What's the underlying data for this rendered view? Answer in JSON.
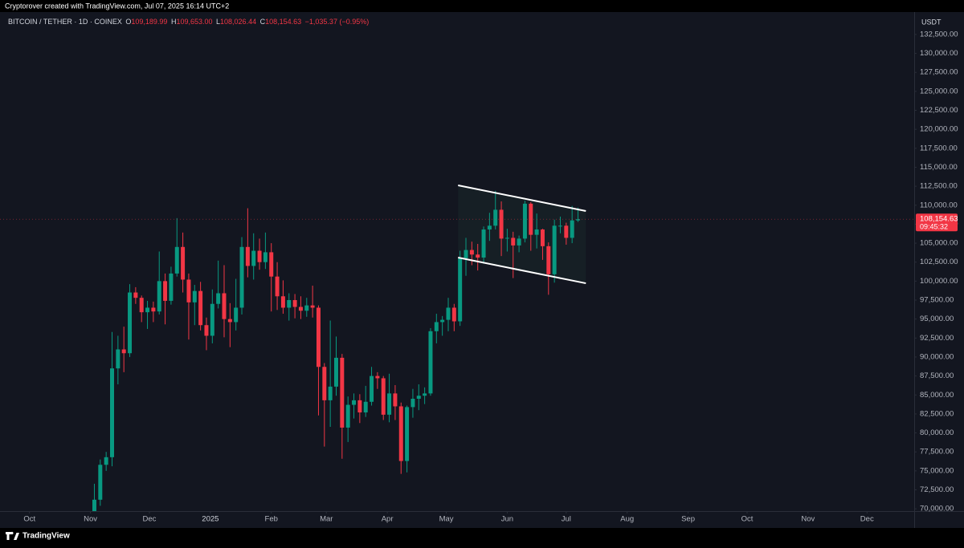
{
  "top_bar": {
    "text": "Cryptorover created with TradingView.com, Jul 07, 2025 16:14 UTC+2"
  },
  "footer": {
    "brand": "TradingView"
  },
  "chart_data": {
    "type": "candlestick",
    "header": {
      "symbol": "BITCOIN / TETHER · 1D · COINEX",
      "open_label": "O",
      "open": "109,189.99",
      "high_label": "H",
      "high": "109,653.00",
      "low_label": "L",
      "low": "108,026.44",
      "close_label": "C",
      "close": "108,154.63",
      "change": "−1,035.37 (−0.95%)"
    },
    "currency": "USDT",
    "last_price": {
      "value": 108154.63,
      "label": "108,154.63",
      "countdown": "09:45:32",
      "color": "#f23645"
    },
    "up_color": "#089981",
    "down_color": "#f23645",
    "grid": false,
    "x": [
      "2024-11-03",
      "2024-11-06",
      "2024-11-09",
      "2024-11-12",
      "2024-11-15",
      "2024-11-18",
      "2024-11-21",
      "2024-11-24",
      "2024-11-27",
      "2024-11-30",
      "2024-12-03",
      "2024-12-06",
      "2024-12-09",
      "2024-12-12",
      "2024-12-15",
      "2024-12-18",
      "2024-12-21",
      "2024-12-24",
      "2024-12-27",
      "2024-12-30",
      "2025-01-02",
      "2025-01-05",
      "2025-01-08",
      "2025-01-11",
      "2025-01-14",
      "2025-01-17",
      "2025-01-20",
      "2025-01-23",
      "2025-01-26",
      "2025-01-29",
      "2025-02-01",
      "2025-02-04",
      "2025-02-07",
      "2025-02-10",
      "2025-02-13",
      "2025-02-16",
      "2025-02-19",
      "2025-02-22",
      "2025-02-25",
      "2025-02-28",
      "2025-03-03",
      "2025-03-06",
      "2025-03-09",
      "2025-03-12",
      "2025-03-15",
      "2025-03-18",
      "2025-03-21",
      "2025-03-24",
      "2025-03-27",
      "2025-03-30",
      "2025-04-02",
      "2025-04-05",
      "2025-04-08",
      "2025-04-11",
      "2025-04-14",
      "2025-04-17",
      "2025-04-20",
      "2025-04-23",
      "2025-04-26",
      "2025-04-29",
      "2025-05-02",
      "2025-05-05",
      "2025-05-08",
      "2025-05-11",
      "2025-05-14",
      "2025-05-17",
      "2025-05-20",
      "2025-05-23",
      "2025-05-26",
      "2025-05-29",
      "2025-06-01",
      "2025-06-04",
      "2025-06-07",
      "2025-06-10",
      "2025-06-13",
      "2025-06-16",
      "2025-06-19",
      "2025-06-22",
      "2025-06-25",
      "2025-06-28",
      "2025-07-01",
      "2025-07-04",
      "2025-07-07"
    ],
    "open": [
      69300,
      71200,
      75800,
      76800,
      88500,
      91000,
      90500,
      98500,
      97800,
      95900,
      96500,
      96000,
      100000,
      97400,
      101000,
      104500,
      100200,
      97200,
      98700,
      94200,
      92800,
      97000,
      98400,
      95000,
      94600,
      96500,
      104500,
      102000,
      104000,
      102500,
      103800,
      100600,
      98000,
      96500,
      97500,
      96600,
      96100,
      96800,
      96500,
      88700,
      84300,
      86100,
      89900,
      80700,
      83700,
      84300,
      82700,
      84100,
      87500,
      87200,
      82400,
      85200,
      83500,
      76300,
      83400,
      84500,
      84900,
      85200,
      93400,
      94600,
      94900,
      96500,
      94700,
      103000,
      104100,
      103500,
      103100,
      106800,
      107300,
      109400,
      105600,
      105700,
      104700,
      105600,
      110200,
      106100,
      106800,
      104600,
      100900,
      107300,
      107300,
      105700,
      108000
    ],
    "high": [
      73300,
      76500,
      77500,
      93300,
      92800,
      94000,
      99600,
      99200,
      98100,
      97400,
      97300,
      103900,
      101000,
      101900,
      108300,
      106400,
      101000,
      99500,
      99900,
      95200,
      98900,
      102700,
      102100,
      97100,
      100300,
      105800,
      109600,
      106300,
      105600,
      106400,
      105000,
      102500,
      100100,
      98400,
      98300,
      98000,
      97800,
      99400,
      96800,
      89200,
      94800,
      92700,
      90400,
      84800,
      85200,
      85100,
      86200,
      88700,
      88000,
      87500,
      87800,
      86300,
      84000,
      83600,
      85800,
      86400,
      86000,
      93800,
      95700,
      95400,
      97800,
      97000,
      104000,
      105700,
      105200,
      104900,
      107200,
      109000,
      111900,
      110500,
      106900,
      106500,
      106000,
      110600,
      110400,
      108900,
      106900,
      105100,
      108100,
      108500,
      107700,
      109900,
      109700
    ],
    "low": [
      68000,
      70400,
      75000,
      75600,
      86400,
      88000,
      90000,
      97000,
      94600,
      93700,
      94600,
      95600,
      94300,
      96900,
      100600,
      98500,
      92300,
      94200,
      93500,
      90900,
      91800,
      96400,
      92600,
      91300,
      93500,
      95600,
      100500,
      100200,
      101500,
      101600,
      96000,
      96200,
      95700,
      94800,
      95100,
      95000,
      95300,
      95200,
      82300,
      78200,
      80800,
      84900,
      76600,
      78800,
      81900,
      81300,
      82100,
      83600,
      85800,
      81700,
      81400,
      81700,
      74600,
      74800,
      82000,
      83000,
      83800,
      84900,
      91800,
      92800,
      93400,
      93400,
      94100,
      100700,
      102100,
      101400,
      102300,
      105300,
      106800,
      103300,
      103900,
      100400,
      103800,
      105100,
      104000,
      104300,
      102800,
      98200,
      99800,
      106300,
      104800,
      105000,
      107800
    ],
    "close": [
      71200,
      75800,
      76800,
      88500,
      91000,
      90500,
      98500,
      97800,
      95900,
      96500,
      96000,
      100000,
      97400,
      101000,
      104500,
      100200,
      97200,
      98700,
      94200,
      92800,
      97000,
      98400,
      95000,
      94600,
      96500,
      104500,
      102000,
      104000,
      102500,
      103800,
      100600,
      98000,
      96500,
      97500,
      96600,
      96100,
      96800,
      96500,
      88700,
      84300,
      86100,
      89900,
      80700,
      83700,
      84300,
      82700,
      84100,
      87500,
      87200,
      82400,
      85200,
      83500,
      76300,
      83400,
      84500,
      84900,
      85200,
      93400,
      94600,
      94900,
      96500,
      94700,
      103000,
      104100,
      103500,
      103100,
      106800,
      107300,
      109400,
      105600,
      105700,
      104700,
      105600,
      110200,
      106100,
      106800,
      104600,
      100900,
      107300,
      107300,
      105700,
      108000,
      108155
    ],
    "channel": {
      "x": [
        "2025-05-07",
        "2025-07-11"
      ],
      "upper": [
        112618,
        109234
      ],
      "lower": [
        103100,
        99716
      ],
      "color": "#ffffff"
    },
    "xlim": [
      "2024-09-16",
      "2025-12-25"
    ],
    "xticks": [
      {
        "value": "2024-10-01",
        "label": "Oct"
      },
      {
        "value": "2024-11-01",
        "label": "Nov"
      },
      {
        "value": "2024-12-01",
        "label": "Dec"
      },
      {
        "value": "2025-01-01",
        "label": "2025"
      },
      {
        "value": "2025-02-01",
        "label": "Feb"
      },
      {
        "value": "2025-03-01",
        "label": "Mar"
      },
      {
        "value": "2025-04-01",
        "label": "Apr"
      },
      {
        "value": "2025-05-01",
        "label": "May"
      },
      {
        "value": "2025-06-01",
        "label": "Jun"
      },
      {
        "value": "2025-07-01",
        "label": "Jul"
      },
      {
        "value": "2025-08-01",
        "label": "Aug"
      },
      {
        "value": "2025-09-01",
        "label": "Sep"
      },
      {
        "value": "2025-10-01",
        "label": "Oct"
      },
      {
        "value": "2025-11-01",
        "label": "Nov"
      },
      {
        "value": "2025-12-01",
        "label": "Dec"
      }
    ],
    "ylim": [
      69700,
      135450
    ],
    "yticks": [
      {
        "value": 70000,
        "label": "70,000.00"
      },
      {
        "value": 72500,
        "label": "72,500.00"
      },
      {
        "value": 75000,
        "label": "75,000.00"
      },
      {
        "value": 77500,
        "label": "77,500.00"
      },
      {
        "value": 80000,
        "label": "80,000.00"
      },
      {
        "value": 82500,
        "label": "82,500.00"
      },
      {
        "value": 85000,
        "label": "85,000.00"
      },
      {
        "value": 87500,
        "label": "87,500.00"
      },
      {
        "value": 90000,
        "label": "90,000.00"
      },
      {
        "value": 92500,
        "label": "92,500.00"
      },
      {
        "value": 95000,
        "label": "95,000.00"
      },
      {
        "value": 97500,
        "label": "97,500.00"
      },
      {
        "value": 100000,
        "label": "100,000.00"
      },
      {
        "value": 102500,
        "label": "102,500.00"
      },
      {
        "value": 105000,
        "label": "105,000.00"
      },
      {
        "value": 107500,
        "label": "107,500.00"
      },
      {
        "value": 110000,
        "label": "110,000.00"
      },
      {
        "value": 112500,
        "label": "112,500.00"
      },
      {
        "value": 115000,
        "label": "115,000.00"
      },
      {
        "value": 117500,
        "label": "117,500.00"
      },
      {
        "value": 120000,
        "label": "120,000.00"
      },
      {
        "value": 122500,
        "label": "122,500.00"
      },
      {
        "value": 125000,
        "label": "125,000.00"
      },
      {
        "value": 127500,
        "label": "127,500.00"
      },
      {
        "value": 130000,
        "label": "130,000.00"
      },
      {
        "value": 132500,
        "label": "132,500.00"
      }
    ]
  }
}
